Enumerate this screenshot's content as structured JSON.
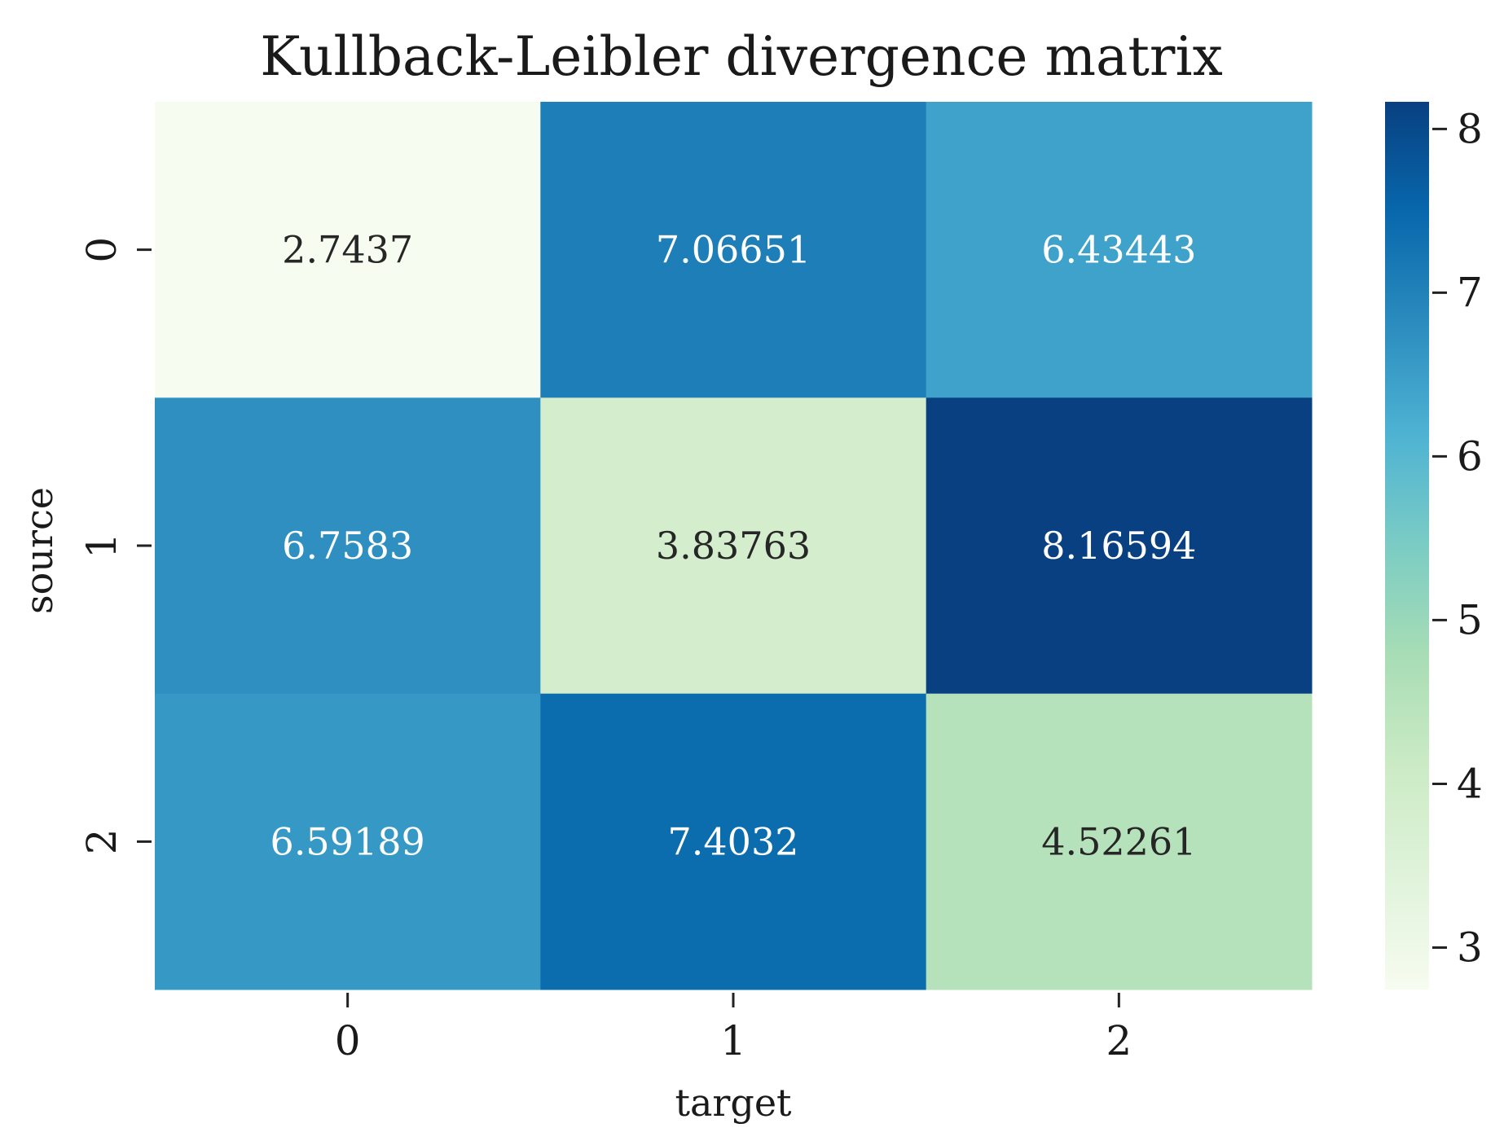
{
  "chart_data": {
    "type": "heatmap",
    "title": "Kullback-Leibler divergence matrix",
    "xlabel": "target",
    "ylabel": "source",
    "x_categories": [
      "0",
      "1",
      "2"
    ],
    "y_categories": [
      "0",
      "1",
      "2"
    ],
    "values": [
      [
        2.7437,
        7.06651,
        6.43443
      ],
      [
        6.7583,
        3.83763,
        8.16594
      ],
      [
        6.59189,
        7.4032,
        4.52261
      ]
    ],
    "cell_labels": [
      [
        "2.7437",
        "7.06651",
        "6.43443"
      ],
      [
        "6.7583",
        "3.83763",
        "8.16594"
      ],
      [
        "6.59189",
        "7.4032",
        "4.52261"
      ]
    ],
    "colormap": "GnBu",
    "vmin": 2.7437,
    "vmax": 8.16594,
    "colorbar_ticks": [
      3,
      4,
      5,
      6,
      7,
      8
    ],
    "colorbar_tick_labels": [
      "3",
      "4",
      "5",
      "6",
      "7",
      "8"
    ]
  }
}
